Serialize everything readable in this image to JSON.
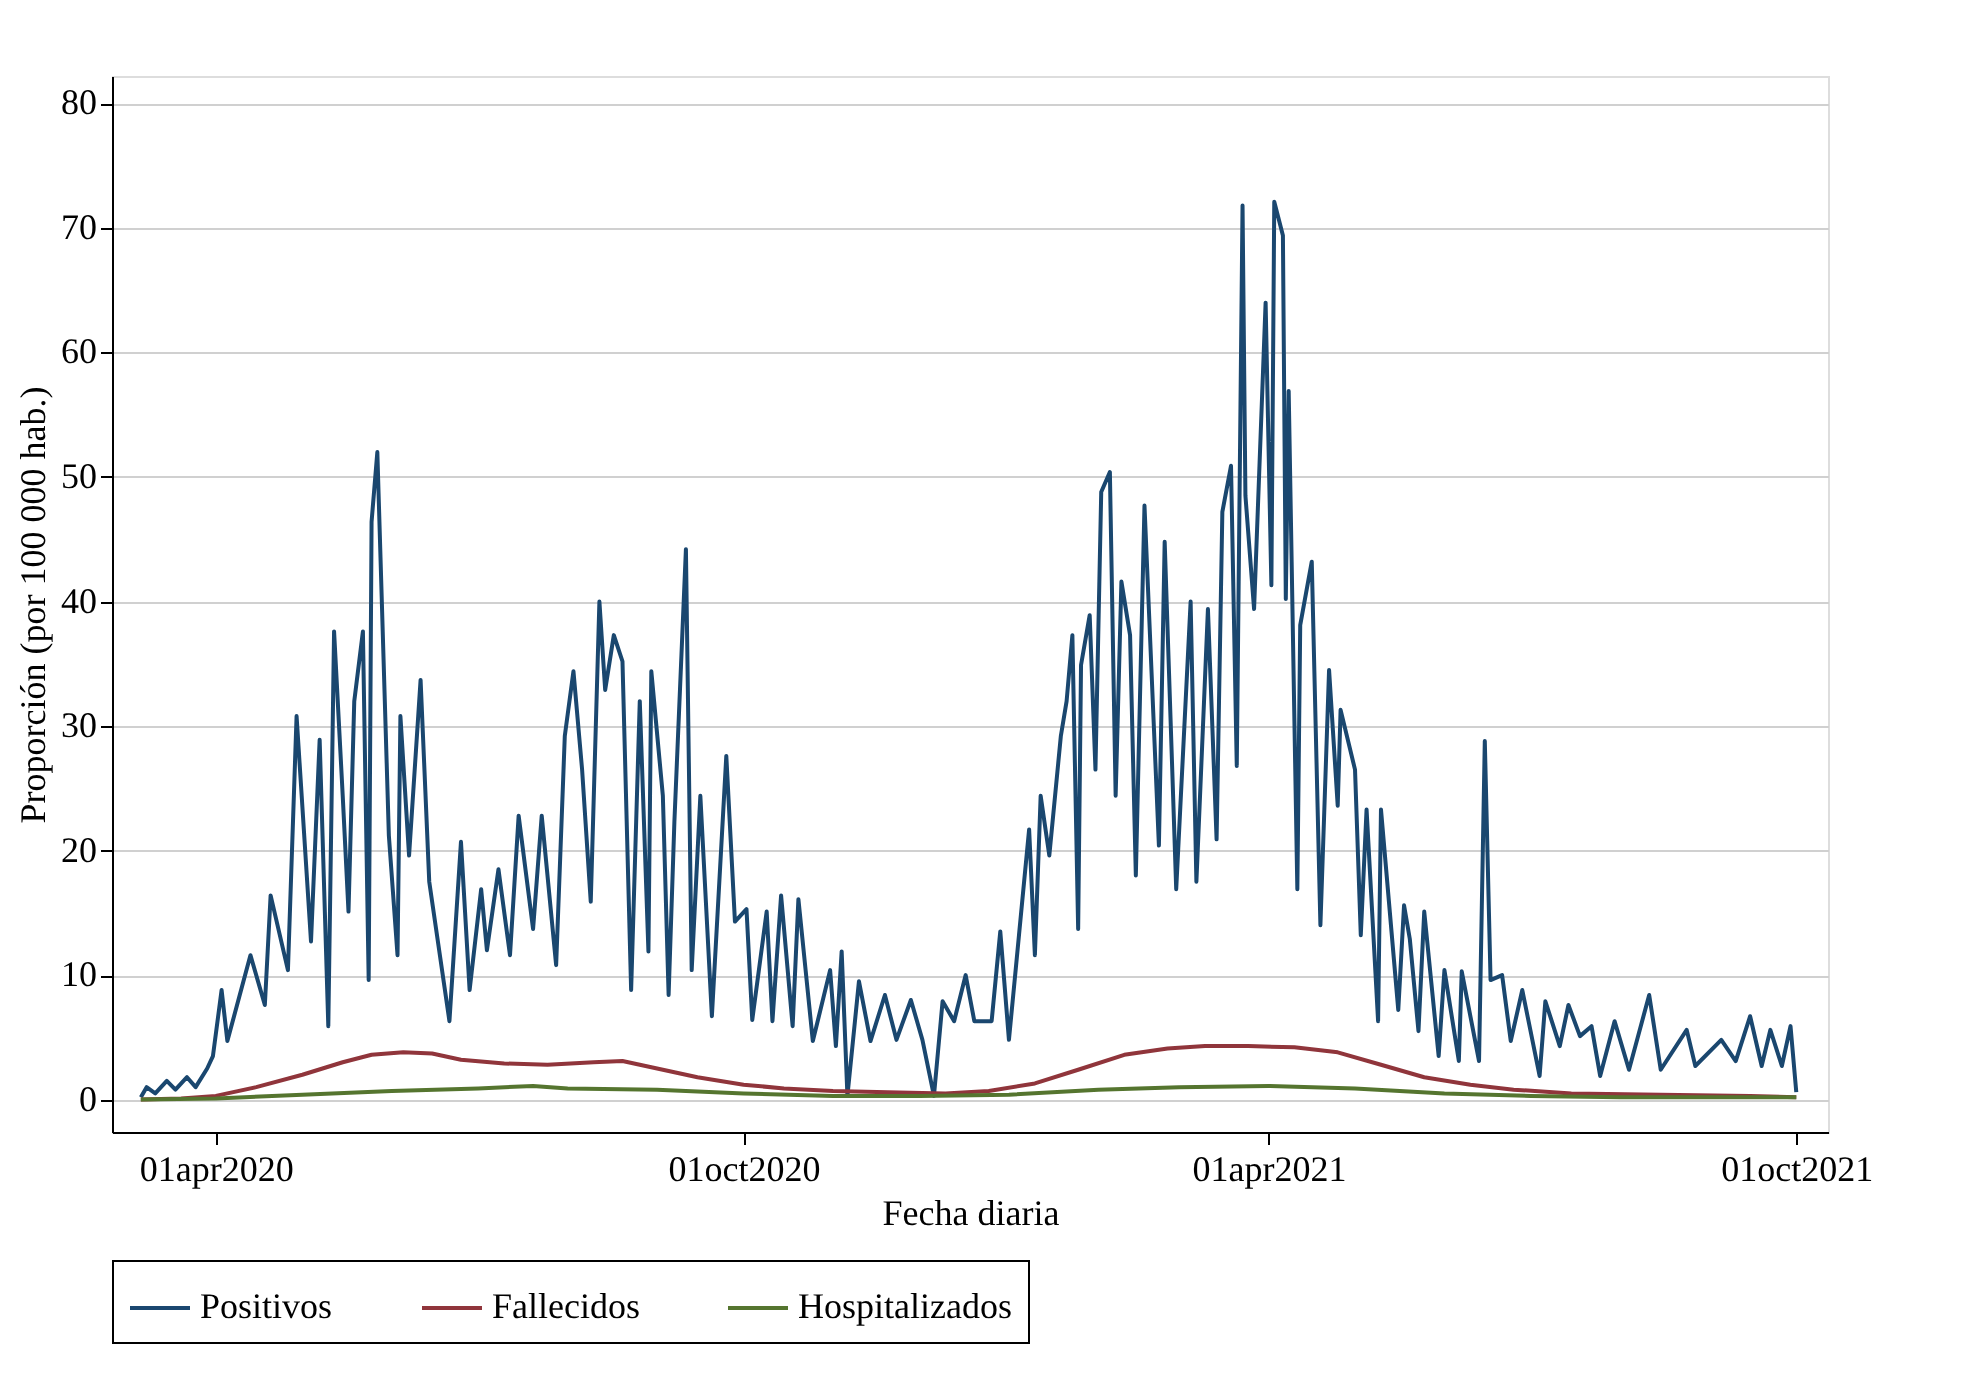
{
  "chart_data": {
    "type": "line",
    "xlabel": "Fecha diaria",
    "ylabel": "Proporción (por 100 000 hab.)",
    "xlim": [
      "2020-02-25",
      "2021-10-12"
    ],
    "ylim": [
      -2.6,
      82.2
    ],
    "xticks": [
      {
        "value": "2020-04-01",
        "label": "01apr2020"
      },
      {
        "value": "2020-10-01",
        "label": "01oct2020"
      },
      {
        "value": "2021-04-01",
        "label": "01apr2021"
      },
      {
        "value": "2021-10-01",
        "label": "01oct2021"
      }
    ],
    "yticks": [
      0,
      10,
      20,
      30,
      40,
      50,
      60,
      70,
      80
    ],
    "grid": "y",
    "legend": "bottom",
    "series": [
      {
        "name": "Positivos",
        "color": "#1a476f",
        "x": [
          "2020-03-06",
          "2020-03-08",
          "2020-03-11",
          "2020-03-15",
          "2020-03-18",
          "2020-03-22",
          "2020-03-25",
          "2020-03-29",
          "2020-03-31",
          "2020-04-03",
          "2020-04-05",
          "2020-04-13",
          "2020-04-18",
          "2020-04-20",
          "2020-04-26",
          "2020-04-29",
          "2020-05-04",
          "2020-05-07",
          "2020-05-10",
          "2020-05-12",
          "2020-05-15",
          "2020-05-17",
          "2020-05-19",
          "2020-05-22",
          "2020-05-24",
          "2020-05-25",
          "2020-05-27",
          "2020-05-31",
          "2020-06-03",
          "2020-06-04",
          "2020-06-07",
          "2020-06-11",
          "2020-06-14",
          "2020-06-21",
          "2020-06-25",
          "2020-06-28",
          "2020-07-02",
          "2020-07-04",
          "2020-07-08",
          "2020-07-12",
          "2020-07-15",
          "2020-07-20",
          "2020-07-23",
          "2020-07-28",
          "2020-07-31",
          "2020-08-03",
          "2020-08-06",
          "2020-08-09",
          "2020-08-12",
          "2020-08-14",
          "2020-08-17",
          "2020-08-20",
          "2020-08-23",
          "2020-08-26",
          "2020-08-29",
          "2020-08-30",
          "2020-09-03",
          "2020-09-05",
          "2020-09-07",
          "2020-09-11",
          "2020-09-13",
          "2020-09-16",
          "2020-09-20",
          "2020-09-25",
          "2020-09-28",
          "2020-10-02",
          "2020-10-04",
          "2020-10-09",
          "2020-10-11",
          "2020-10-14",
          "2020-10-18",
          "2020-10-20",
          "2020-10-25",
          "2020-10-31",
          "2020-11-02",
          "2020-11-04",
          "2020-11-06",
          "2020-11-10",
          "2020-11-14",
          "2020-11-19",
          "2020-11-23",
          "2020-11-28",
          "2020-12-02",
          "2020-12-06",
          "2020-12-09",
          "2020-12-13",
          "2020-12-17",
          "2020-12-20",
          "2020-12-26",
          "2020-12-29",
          "2021-01-01",
          "2021-01-08",
          "2021-01-10",
          "2021-01-12",
          "2021-01-15",
          "2021-01-19",
          "2021-01-21",
          "2021-01-23",
          "2021-01-25",
          "2021-01-26",
          "2021-01-29",
          "2021-01-31",
          "2021-02-02",
          "2021-02-05",
          "2021-02-07",
          "2021-02-09",
          "2021-02-12",
          "2021-02-14",
          "2021-02-17",
          "2021-02-22",
          "2021-02-24",
          "2021-02-28",
          "2021-03-05",
          "2021-03-07",
          "2021-03-11",
          "2021-03-14",
          "2021-03-16",
          "2021-03-19",
          "2021-03-21",
          "2021-03-23",
          "2021-03-24",
          "2021-03-27",
          "2021-03-31",
          "2021-04-02",
          "2021-04-03",
          "2021-04-06",
          "2021-04-07",
          "2021-04-08",
          "2021-04-11",
          "2021-04-12",
          "2021-04-16",
          "2021-04-19",
          "2021-04-22",
          "2021-04-25",
          "2021-04-26",
          "2021-05-01",
          "2021-05-03",
          "2021-05-05",
          "2021-05-09",
          "2021-05-10",
          "2021-05-16",
          "2021-05-18",
          "2021-05-20",
          "2021-05-23",
          "2021-05-25",
          "2021-05-30",
          "2021-06-01",
          "2021-06-06",
          "2021-06-07",
          "2021-06-13",
          "2021-06-15",
          "2021-06-17",
          "2021-06-21",
          "2021-06-24",
          "2021-06-28",
          "2021-07-04",
          "2021-07-06",
          "2021-07-11",
          "2021-07-14",
          "2021-07-18",
          "2021-07-22",
          "2021-07-25",
          "2021-07-30",
          "2021-08-04",
          "2021-08-11",
          "2021-08-15",
          "2021-08-24",
          "2021-08-27",
          "2021-09-05",
          "2021-09-10",
          "2021-09-15",
          "2021-09-19",
          "2021-09-22",
          "2021-09-26",
          "2021-09-29",
          "2021-10-01"
        ],
        "values": [
          0.2,
          1,
          0.5,
          1.5,
          0.8,
          1.8,
          1,
          2.5,
          3.5,
          8.8,
          4.7,
          11.6,
          7.6,
          16.4,
          10.4,
          30.8,
          12.7,
          28.9,
          5.9,
          37.6,
          24.4,
          15.1,
          32,
          37.6,
          9.6,
          46.4,
          52,
          21.2,
          11.6,
          30.8,
          19.6,
          33.7,
          17.5,
          6.3,
          20.7,
          8.8,
          16.9,
          12,
          18.5,
          11.6,
          22.8,
          13.7,
          22.8,
          10.8,
          29.2,
          34.4,
          26.5,
          15.9,
          40,
          32.9,
          37.3,
          35.2,
          8.8,
          32,
          11.9,
          34.4,
          24.4,
          8.4,
          22.3,
          44.2,
          10.4,
          24.4,
          6.7,
          27.6,
          14.3,
          15.3,
          6.4,
          15.1,
          6.3,
          16.4,
          5.9,
          16.1,
          4.7,
          10.4,
          4.3,
          11.9,
          0.3,
          9.5,
          4.7,
          8.4,
          4.8,
          8,
          4.8,
          0.3,
          7.9,
          6.3,
          10,
          6.3,
          6.3,
          13.5,
          4.8,
          21.7,
          11.6,
          24.4,
          19.6,
          29.2,
          32,
          37.3,
          13.7,
          34.9,
          38.9,
          26.5,
          48.8,
          50.4,
          24.4,
          41.6,
          37.3,
          18,
          47.7,
          20.4,
          44.8,
          16.9,
          40,
          17.5,
          39.4,
          20.9,
          47.2,
          50.9,
          26.8,
          71.8,
          48.5,
          39.4,
          64,
          41.3,
          72.1,
          69.4,
          40.2,
          56.9,
          16.9,
          38.1,
          43.2,
          14,
          34.5,
          23.6,
          31.3,
          26.5,
          13.2,
          23.3,
          6.3,
          23.3,
          7.2,
          15.6,
          12.9,
          5.5,
          15.1,
          3.5,
          10.4,
          3.1,
          10.3,
          3.1,
          28.8,
          9.6,
          10,
          4.7,
          8.8,
          1.9,
          7.9,
          4.3,
          7.6,
          5.1,
          5.9,
          1.9,
          6.3,
          2.4,
          8.4,
          2.4,
          5.6,
          2.7,
          4.8,
          3.1,
          6.7,
          2.7,
          5.6,
          2.7,
          5.9,
          0.6
        ]
      },
      {
        "name": "Fallecidos",
        "color": "#90353b",
        "x": [
          "2020-03-06",
          "2020-03-20",
          "2020-04-01",
          "2020-04-15",
          "2020-05-01",
          "2020-05-15",
          "2020-05-25",
          "2020-06-05",
          "2020-06-15",
          "2020-06-25",
          "2020-07-10",
          "2020-07-25",
          "2020-08-10",
          "2020-08-20",
          "2020-09-01",
          "2020-09-15",
          "2020-10-01",
          "2020-10-15",
          "2020-11-01",
          "2020-11-20",
          "2020-12-10",
          "2020-12-25",
          "2021-01-10",
          "2021-01-25",
          "2021-02-10",
          "2021-02-25",
          "2021-03-10",
          "2021-03-25",
          "2021-04-10",
          "2021-04-25",
          "2021-05-10",
          "2021-05-25",
          "2021-06-10",
          "2021-06-25",
          "2021-07-15",
          "2021-08-15",
          "2021-09-15",
          "2021-10-01"
        ],
        "values": [
          0,
          0.1,
          0.3,
          1.0,
          2.0,
          3.0,
          3.6,
          3.8,
          3.7,
          3.2,
          2.9,
          2.8,
          3.0,
          3.1,
          2.5,
          1.8,
          1.2,
          0.9,
          0.7,
          0.6,
          0.5,
          0.7,
          1.3,
          2.4,
          3.6,
          4.1,
          4.3,
          4.3,
          4.2,
          3.8,
          2.8,
          1.8,
          1.2,
          0.8,
          0.5,
          0.4,
          0.3,
          0.2
        ]
      },
      {
        "name": "Hospitalizados",
        "color": "#55752f",
        "x": [
          "2020-03-06",
          "2020-04-01",
          "2020-05-01",
          "2020-06-01",
          "2020-07-01",
          "2020-07-20",
          "2020-08-01",
          "2020-09-01",
          "2020-10-01",
          "2020-11-01",
          "2020-12-01",
          "2021-01-01",
          "2021-02-01",
          "2021-03-01",
          "2021-04-01",
          "2021-05-01",
          "2021-06-01",
          "2021-07-01",
          "2021-08-01",
          "2021-10-01"
        ],
        "values": [
          0,
          0.1,
          0.4,
          0.7,
          0.9,
          1.1,
          0.9,
          0.8,
          0.5,
          0.3,
          0.3,
          0.4,
          0.8,
          1.0,
          1.1,
          0.9,
          0.5,
          0.3,
          0.2,
          0.2
        ]
      }
    ]
  }
}
